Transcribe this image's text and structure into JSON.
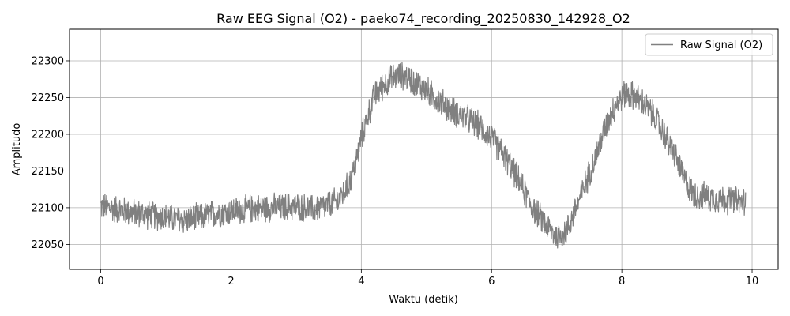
{
  "chart_data": {
    "type": "line",
    "title": "Raw EEG Signal (O2) - paeko74_recording_20250830_142928_O2",
    "xlabel": "Waktu (detik)",
    "ylabel": "Amplitudo",
    "xlim": [
      -0.48,
      10.4
    ],
    "ylim": [
      22016,
      22343
    ],
    "xticks": [
      0,
      2,
      4,
      6,
      8,
      10
    ],
    "xtick_labels": [
      "0",
      "2",
      "4",
      "6",
      "8",
      "10"
    ],
    "yticks": [
      22050,
      22100,
      22150,
      22200,
      22250,
      22300
    ],
    "ytick_labels": [
      "22050",
      "22100",
      "22150",
      "22200",
      "22250",
      "22300"
    ],
    "grid": true,
    "legend_position": "top-right",
    "series": [
      {
        "name": "Raw Signal (O2)",
        "color": "#808080",
        "x": [
          0.0,
          0.25,
          0.5,
          0.75,
          1.0,
          1.25,
          1.5,
          1.75,
          2.0,
          2.25,
          2.5,
          2.75,
          3.0,
          3.25,
          3.5,
          3.65,
          3.8,
          3.9,
          4.0,
          4.1,
          4.2,
          4.35,
          4.5,
          4.65,
          4.8,
          5.0,
          5.2,
          5.4,
          5.6,
          5.8,
          6.0,
          6.2,
          6.4,
          6.6,
          6.8,
          7.0,
          7.15,
          7.3,
          7.45,
          7.6,
          7.75,
          7.9,
          8.05,
          8.2,
          8.35,
          8.5,
          8.65,
          8.8,
          8.95,
          9.1,
          9.3,
          9.5,
          9.7,
          9.9
        ],
        "y": [
          22102,
          22098,
          22093,
          22090,
          22087,
          22083,
          22086,
          22092,
          22095,
          22098,
          22100,
          22100,
          22102,
          22098,
          22103,
          22110,
          22130,
          22155,
          22195,
          22225,
          22252,
          22268,
          22278,
          22280,
          22272,
          22260,
          22245,
          22232,
          22222,
          22212,
          22195,
          22170,
          22140,
          22105,
          22080,
          22060,
          22068,
          22100,
          22135,
          22170,
          22210,
          22240,
          22255,
          22252,
          22240,
          22225,
          22200,
          22175,
          22140,
          22118,
          22115,
          22112,
          22110,
          22108
        ],
        "noise_amplitude": 22,
        "samples": 2000
      }
    ]
  }
}
